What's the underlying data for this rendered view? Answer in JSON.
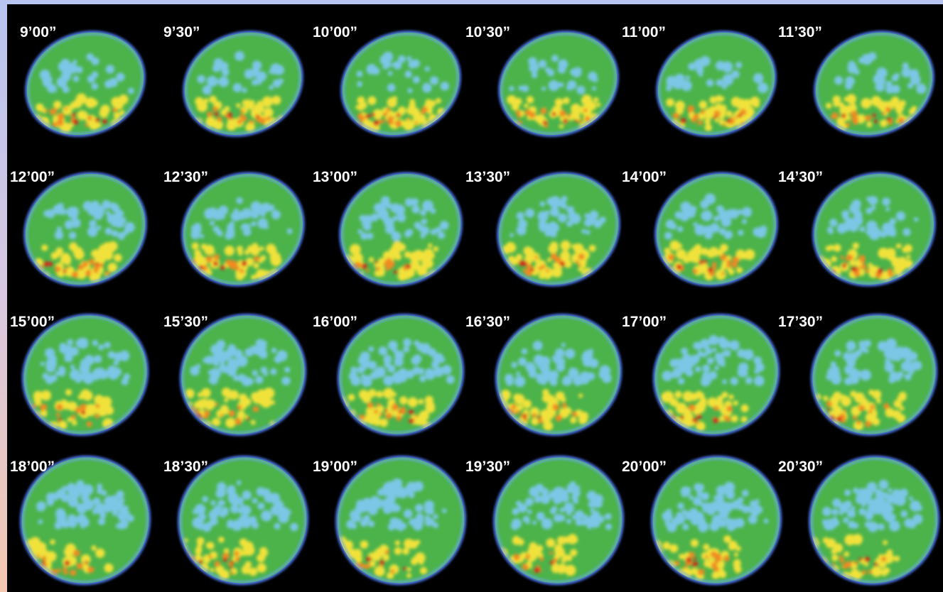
{
  "panels": [
    {
      "label": "9’00”"
    },
    {
      "label": "9’30”"
    },
    {
      "label": "10’00”"
    },
    {
      "label": "10’30”"
    },
    {
      "label": "11’00”"
    },
    {
      "label": "11’30”"
    },
    {
      "label": "12’00”"
    },
    {
      "label": "12’30”"
    },
    {
      "label": "13’00”"
    },
    {
      "label": "13’30”"
    },
    {
      "label": "14’00”"
    },
    {
      "label": "14’30”"
    },
    {
      "label": "15’00”"
    },
    {
      "label": "15’30”"
    },
    {
      "label": "16’00”"
    },
    {
      "label": "16’30”"
    },
    {
      "label": "17’00”"
    },
    {
      "label": "17’30”"
    },
    {
      "label": "18’00”"
    },
    {
      "label": "18’30”"
    },
    {
      "label": "19’00”"
    },
    {
      "label": "19’30”"
    },
    {
      "label": "20’00”"
    },
    {
      "label": "20’30”"
    }
  ]
}
